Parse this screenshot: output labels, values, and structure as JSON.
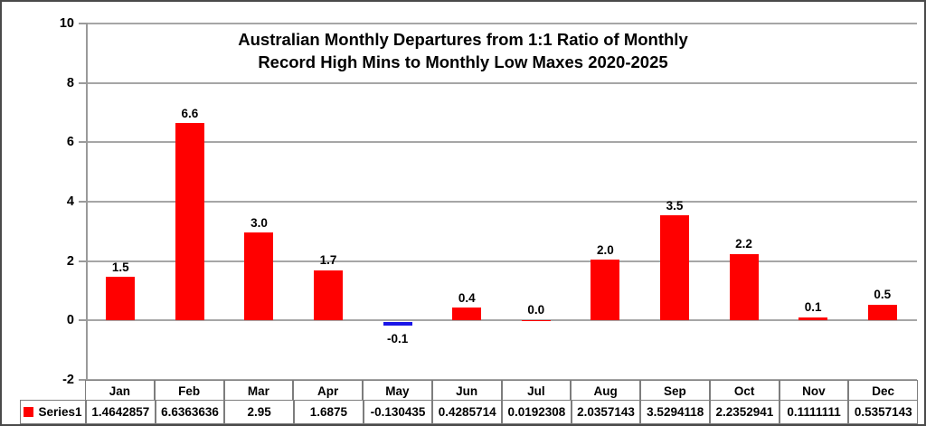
{
  "chart": {
    "title_line1": "Australian Monthly Departures from 1:1 Ratio of Monthly",
    "title_line2": "Record High Mins to Monthly Low Maxes 2020-2025"
  },
  "chart_data": {
    "type": "bar",
    "title": "Australian Monthly Departures from 1:1 Ratio of Monthly Record High Mins to Monthly Low Maxes 2020-2025",
    "categories": [
      "Jan",
      "Feb",
      "Mar",
      "Apr",
      "May",
      "Jun",
      "Jul",
      "Aug",
      "Sep",
      "Oct",
      "Nov",
      "Dec"
    ],
    "series": [
      {
        "name": "Series1",
        "values": [
          1.4642857,
          6.6363636,
          2.95,
          1.6875,
          -0.130435,
          0.4285714,
          0.0192308,
          2.0357143,
          3.5294118,
          2.2352941,
          0.1111111,
          0.5357143
        ]
      }
    ],
    "bar_labels": [
      "1.5",
      "6.6",
      "3.0",
      "1.7",
      "-0.1",
      "0.4",
      "0.0",
      "2.0",
      "3.5",
      "2.2",
      "0.1",
      "0.5"
    ],
    "table_values": [
      "1.4642857",
      "6.6363636",
      "2.95",
      "1.6875",
      "-0.130435",
      "0.4285714",
      "0.0192308",
      "2.0357143",
      "3.5294118",
      "2.2352941",
      "0.1111111",
      "0.5357143"
    ],
    "xlabel": "",
    "ylabel": "",
    "ylim": [
      -2,
      10
    ],
    "yticks": [
      10,
      8,
      6,
      4,
      2,
      0,
      -2
    ],
    "grid": true,
    "data_table_shown": true,
    "legend_position": "data-table-left",
    "positive_bar_color": "#FF0000",
    "negative_bar_color": "#1A16E8",
    "gridline_color": "#A6A6A6"
  }
}
